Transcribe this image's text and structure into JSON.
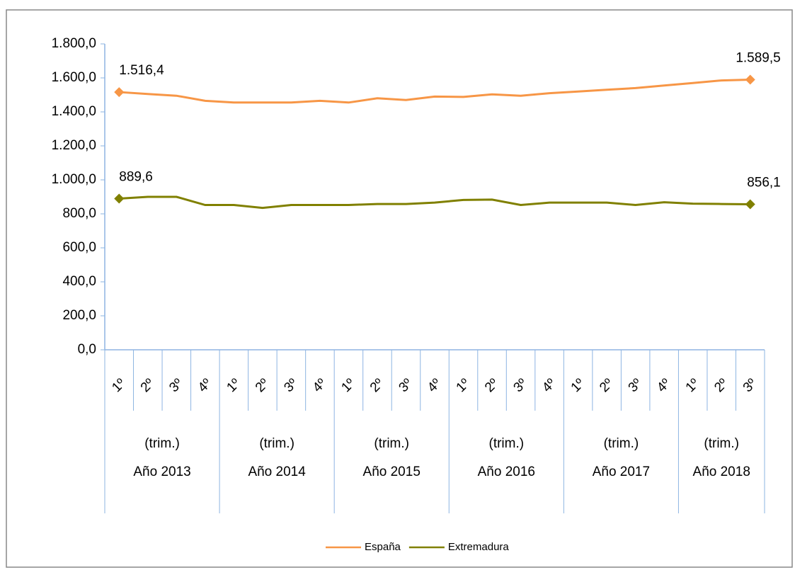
{
  "chart_data": {
    "type": "line",
    "groups": [
      {
        "year": "Año 2013",
        "unit": "(trim.)",
        "quarters": [
          "1º",
          "2º",
          "3º",
          "4º"
        ]
      },
      {
        "year": "Año 2014",
        "unit": "(trim.)",
        "quarters": [
          "1º",
          "2º",
          "3º",
          "4º"
        ]
      },
      {
        "year": "Año 2015",
        "unit": "(trim.)",
        "quarters": [
          "1º",
          "2º",
          "3º",
          "4º"
        ]
      },
      {
        "year": "Año 2016",
        "unit": "(trim.)",
        "quarters": [
          "1º",
          "2º",
          "3º",
          "4º"
        ]
      },
      {
        "year": "Año 2017",
        "unit": "(trim.)",
        "quarters": [
          "1º",
          "2º",
          "3º",
          "4º"
        ]
      },
      {
        "year": "Año 2018",
        "unit": "(trim.)",
        "quarters": [
          "1º",
          "2º",
          "3º"
        ]
      }
    ],
    "series": [
      {
        "name": "España",
        "color": "#f79646",
        "values": [
          1516.4,
          1505,
          1495,
          1465,
          1455,
          1455,
          1455,
          1465,
          1455,
          1480,
          1470,
          1490,
          1488,
          1503,
          1495,
          1510,
          1520,
          1530,
          1540,
          1555,
          1570,
          1585,
          1589.5
        ],
        "value_labels": [
          "1.516,4",
          null,
          null,
          null,
          null,
          null,
          null,
          null,
          null,
          null,
          null,
          null,
          null,
          null,
          null,
          null,
          null,
          null,
          null,
          null,
          null,
          null,
          "1.589,5"
        ]
      },
      {
        "name": "Extremadura",
        "color": "#808000",
        "values": [
          889.6,
          900,
          900,
          852,
          852,
          835,
          852,
          852,
          852,
          858,
          858,
          866,
          882,
          884,
          852,
          866,
          866,
          866,
          852,
          868,
          860,
          858,
          856.1
        ],
        "value_labels": [
          "889,6",
          null,
          null,
          null,
          null,
          null,
          null,
          null,
          null,
          null,
          null,
          null,
          null,
          null,
          null,
          null,
          null,
          null,
          null,
          null,
          null,
          null,
          "856,1"
        ]
      }
    ],
    "ylim": [
      0,
      1800
    ],
    "yticks": [
      {
        "value": 0,
        "label": "0,0"
      },
      {
        "value": 200,
        "label": "200,0"
      },
      {
        "value": 400,
        "label": "400,0"
      },
      {
        "value": 600,
        "label": "600,0"
      },
      {
        "value": 800,
        "label": "800,0"
      },
      {
        "value": 1000,
        "label": "1.000,0"
      },
      {
        "value": 1200,
        "label": "1.200,0"
      },
      {
        "value": 1400,
        "label": "1.400,0"
      },
      {
        "value": 1600,
        "label": "1.600,0"
      },
      {
        "value": 1800,
        "label": "1.800,0"
      }
    ],
    "legend": "bottom"
  }
}
